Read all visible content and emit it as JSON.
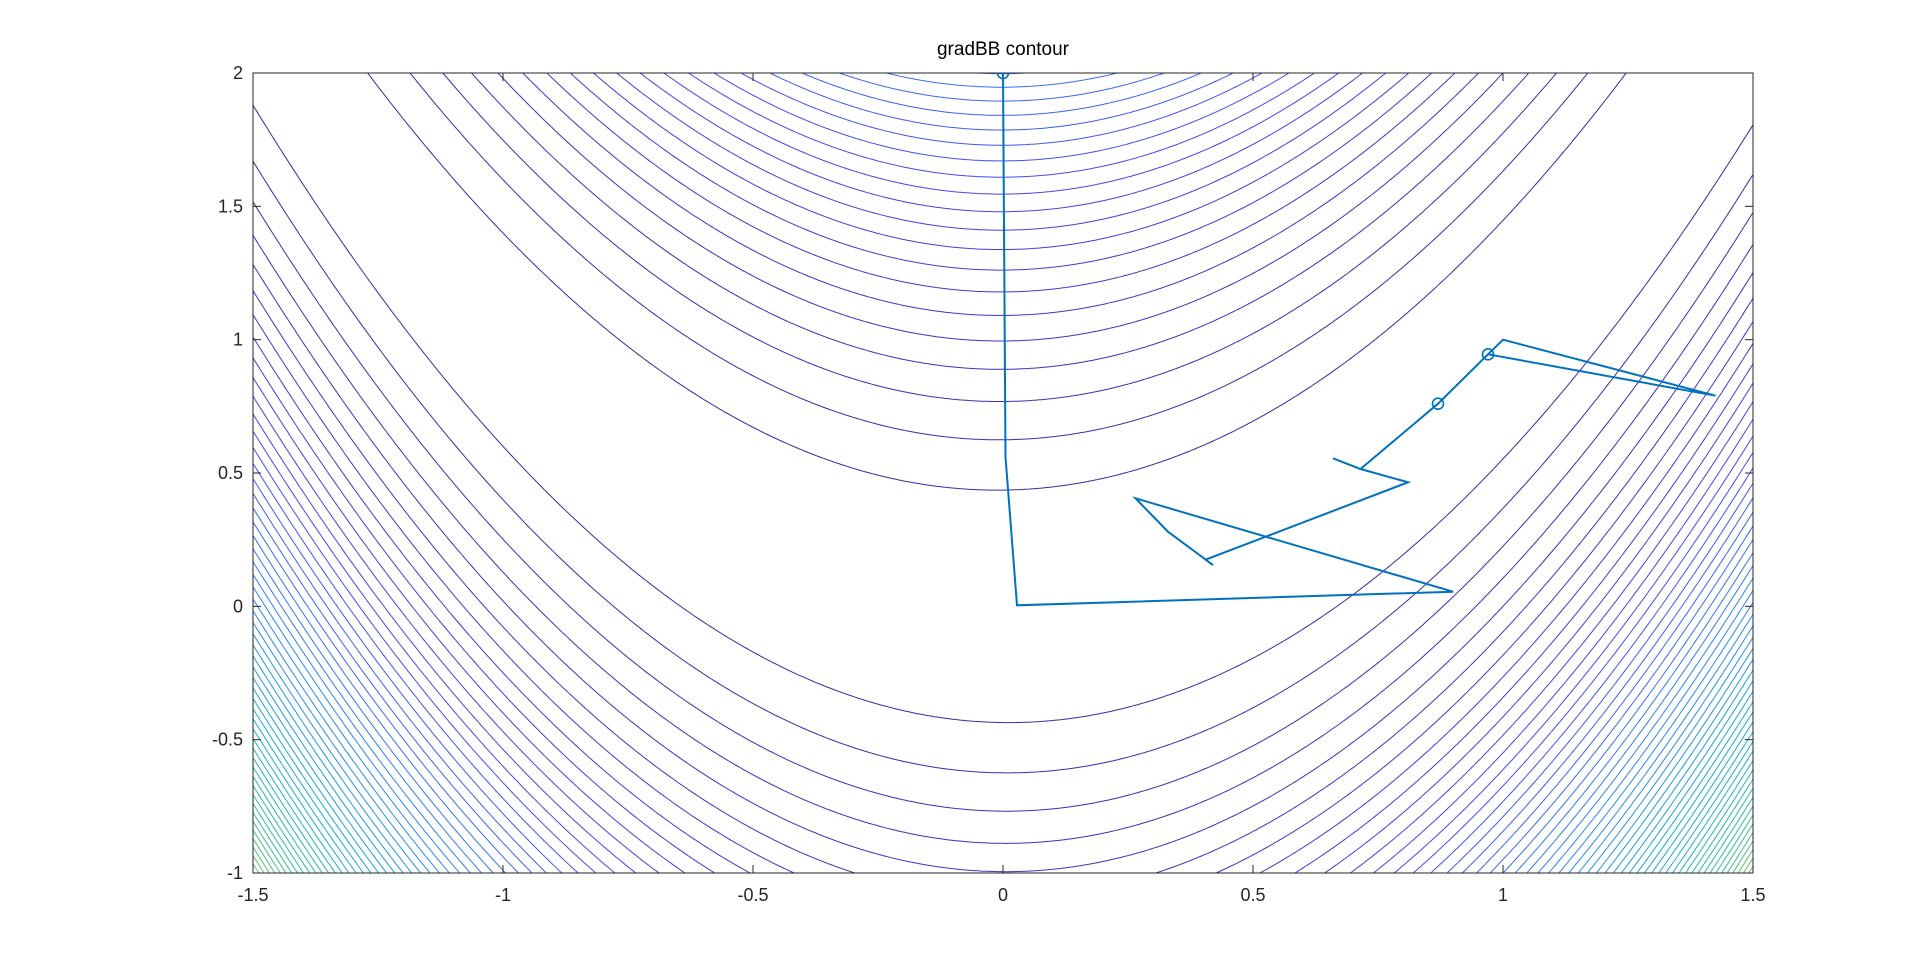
{
  "chart_data": {
    "type": "contour",
    "title": "gradBB  contour",
    "xlabel": "",
    "ylabel": "",
    "xlim": [
      -1.5,
      1.5
    ],
    "ylim": [
      -1,
      2
    ],
    "xticks": [
      -1.5,
      -1,
      -0.5,
      0,
      0.5,
      1,
      1.5
    ],
    "yticks": [
      -1,
      -0.5,
      0,
      0.5,
      1,
      1.5,
      2
    ],
    "xtick_labels": [
      "-1.5",
      "-1",
      "-0.5",
      "0",
      "0.5",
      "1",
      "1.5"
    ],
    "ytick_labels": [
      "-1",
      "-0.5",
      "0",
      "0.5",
      "1",
      "1.5",
      "2"
    ],
    "grid": false,
    "colormap": "parula",
    "contour_function": "Rosenbrock: 100*(y - x^2)^2 + (1 - x)^2",
    "contour_levels": {
      "start": 20,
      "step": 20,
      "count": 75
    },
    "colors": {
      "path": "#0072BD",
      "axes": "#262626",
      "colormap_low": "#3E26A8",
      "colormap_high": "#F9FB15"
    },
    "series": [
      {
        "values": [
          [
            0.0,
            2.0
          ],
          [
            0.005,
            0.56
          ],
          [
            0.028,
            0.004
          ],
          [
            0.9,
            0.055
          ],
          [
            0.265,
            0.405
          ],
          [
            0.33,
            0.28
          ],
          [
            0.42,
            0.155
          ],
          [
            0.405,
            0.175
          ],
          [
            0.81,
            0.465
          ],
          [
            0.715,
            0.515
          ],
          [
            0.66,
            0.555
          ],
          [
            0.715,
            0.515
          ],
          [
            0.87,
            0.76
          ],
          [
            0.97,
            0.945
          ],
          [
            1.425,
            0.79
          ],
          [
            1.0,
            1.0
          ],
          [
            0.97,
            0.945
          ]
        ],
        "markers": [
          [
            0.0,
            2.0
          ],
          [
            0.87,
            0.76
          ],
          [
            0.97,
            0.945
          ]
        ]
      }
    ]
  }
}
